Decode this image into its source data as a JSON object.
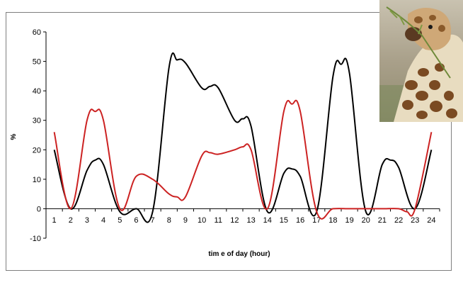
{
  "chart_data": {
    "type": "line",
    "xlabel": "tim e of day (hour)",
    "ylabel": "%",
    "xlim": [
      1,
      24
    ],
    "ylim": [
      -10,
      60
    ],
    "y_ticks": [
      -10,
      0,
      10,
      20,
      30,
      40,
      50,
      60
    ],
    "x_ticks": [
      1,
      2,
      3,
      4,
      5,
      6,
      7,
      8,
      9,
      10,
      11,
      12,
      13,
      14,
      15,
      16,
      17,
      18,
      19,
      20,
      21,
      22,
      23,
      24
    ],
    "grid": false,
    "legend": "none",
    "series": [
      {
        "color": "#000000",
        "x": [
          1,
          2,
          3,
          3.5,
          4,
          5,
          6,
          7,
          8,
          8.5,
          9,
          10,
          10.5,
          11,
          12,
          12.5,
          13,
          14,
          15,
          15.5,
          16,
          17,
          18,
          18.5,
          19,
          20,
          21,
          21.5,
          22,
          23,
          24
        ],
        "values": [
          20,
          0,
          13,
          16.5,
          15,
          -1,
          0,
          -1,
          48,
          50.5,
          49.5,
          41,
          41.5,
          41,
          30,
          30.5,
          28,
          -1,
          12,
          13.5,
          11,
          -1,
          45,
          49,
          46,
          -1,
          15,
          16.5,
          14,
          0,
          20
        ]
      },
      {
        "color": "#cc2222",
        "x": [
          1,
          2,
          3,
          3.5,
          4,
          5,
          6,
          7,
          8,
          8.5,
          9,
          10,
          10.5,
          11,
          12,
          12.5,
          13,
          14,
          15,
          15.5,
          16,
          17,
          18,
          19,
          20,
          21,
          22,
          22.5,
          23,
          24
        ],
        "values": [
          26,
          0,
          30,
          33,
          30,
          0,
          11,
          10,
          5,
          4,
          4,
          18,
          19,
          18.5,
          20,
          21,
          20,
          0,
          33,
          35.5,
          33,
          -1,
          0,
          0,
          0,
          0,
          0,
          -1,
          0,
          26
        ]
      }
    ]
  },
  "photo": {
    "description_icon": "giraffe-photo"
  }
}
